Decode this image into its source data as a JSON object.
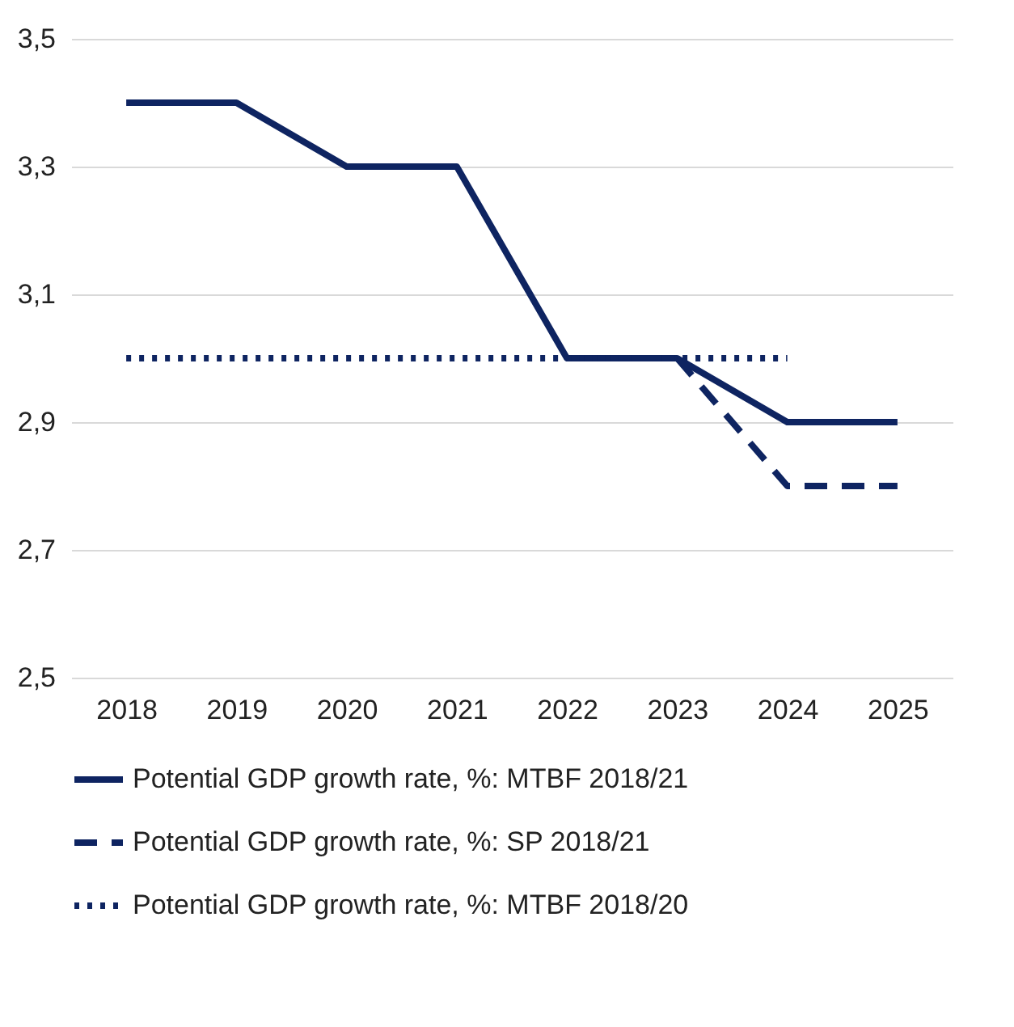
{
  "chart_data": {
    "type": "line",
    "categories": [
      "2018",
      "2019",
      "2020",
      "2021",
      "2022",
      "2023",
      "2024",
      "2025"
    ],
    "series": [
      {
        "name": "Potential GDP growth rate, %: MTBF 2018/21",
        "color": "#0e2461",
        "line_style": "solid",
        "values": [
          3.4,
          3.4,
          3.3,
          3.3,
          3.0,
          3.0,
          2.9,
          2.9
        ]
      },
      {
        "name": "Potential GDP growth rate, %: SP 2018/21",
        "color": "#0e2461",
        "line_style": "dashed",
        "values": [
          null,
          null,
          null,
          null,
          null,
          3.0,
          2.8,
          2.8
        ]
      },
      {
        "name": "Potential GDP growth rate, %: MTBF 2018/20",
        "color": "#0e2461",
        "line_style": "dotted",
        "values": [
          3.0,
          3.0,
          3.0,
          3.0,
          3.0,
          3.0,
          3.0,
          null
        ]
      }
    ],
    "ylim": [
      2.5,
      3.5
    ],
    "yticks": [
      {
        "value": 2.5,
        "label": "2,5"
      },
      {
        "value": 2.7,
        "label": "2,7"
      },
      {
        "value": 2.9,
        "label": "2,9"
      },
      {
        "value": 3.1,
        "label": "3,1"
      },
      {
        "value": 3.3,
        "label": "3,3"
      },
      {
        "value": 3.5,
        "label": "3,5"
      }
    ],
    "grid": "y",
    "legend": "bottom",
    "marker": "none"
  }
}
